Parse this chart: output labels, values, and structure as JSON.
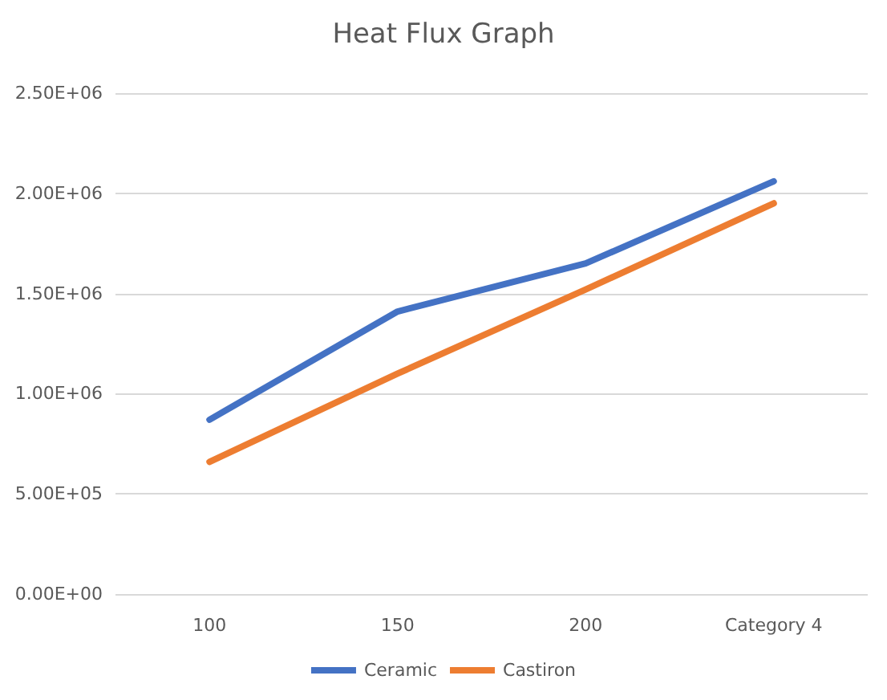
{
  "chart_data": {
    "type": "line",
    "title": "Heat Flux Graph",
    "categories": [
      "100",
      "150",
      "200",
      "Category 4"
    ],
    "series": [
      {
        "name": "Ceramic",
        "color": "#4472c4",
        "values": [
          870000,
          1410000,
          1650000,
          2060000
        ]
      },
      {
        "name": "Castiron",
        "color": "#ed7d31",
        "values": [
          660000,
          1100000,
          1520000,
          1950000
        ]
      }
    ],
    "ylim": [
      0,
      2500000
    ],
    "yticks": [
      {
        "value": 0,
        "label": "0.00E+00"
      },
      {
        "value": 500000,
        "label": "5.00E+05"
      },
      {
        "value": 1000000,
        "label": "1.00E+06"
      },
      {
        "value": 1500000,
        "label": "1.50E+06"
      },
      {
        "value": 2000000,
        "label": "2.00E+06"
      },
      {
        "value": 2500000,
        "label": "2.50E+06"
      }
    ],
    "grid": "y",
    "legend": "bottom",
    "marker": "none",
    "line_style": "solid"
  }
}
